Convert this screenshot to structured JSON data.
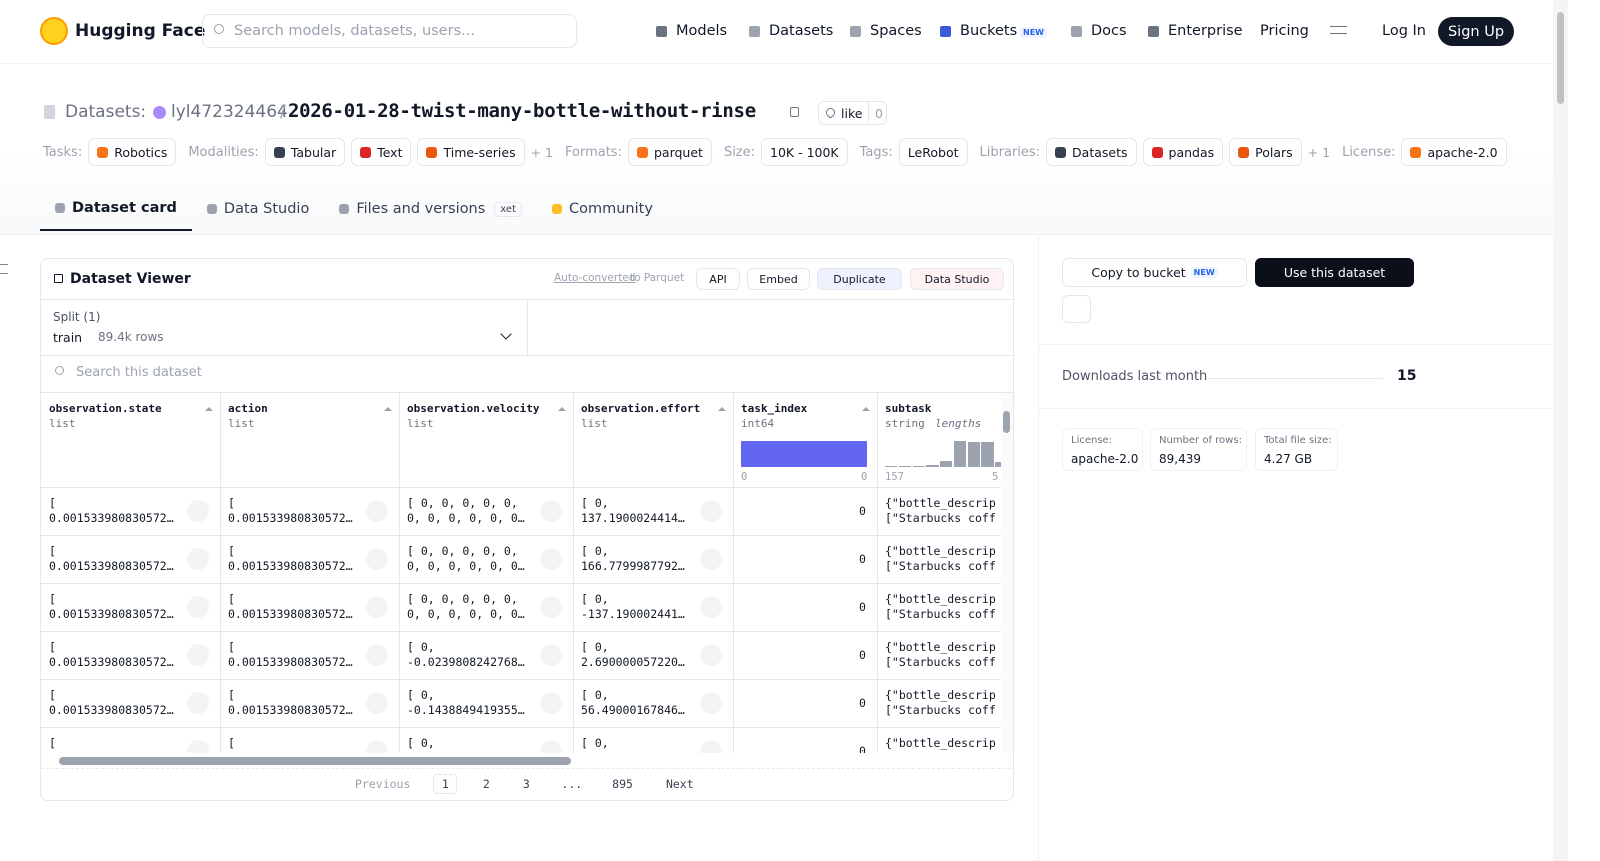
{
  "header": {
    "brand": "Hugging Face",
    "search_placeholder": "Search models, datasets, users...",
    "nav": [
      {
        "label": "Models"
      },
      {
        "label": "Datasets"
      },
      {
        "label": "Spaces"
      },
      {
        "label": "Buckets",
        "badge": "NEW"
      },
      {
        "label": "Docs"
      },
      {
        "label": "Enterprise"
      },
      {
        "label": "Pricing"
      }
    ],
    "login": "Log In",
    "signup": "Sign Up"
  },
  "repo": {
    "kind": "Datasets:",
    "owner": "lyl472324464",
    "separator": "/",
    "name": "2026-01-28-twist-many-bottle-without-rinse",
    "like": "like",
    "likes": 0
  },
  "tags": [
    {
      "label": "Tasks:",
      "items": [
        "Robotics"
      ]
    },
    {
      "label": "Modalities:",
      "items": [
        "Tabular",
        "Text",
        "Time-series"
      ],
      "more": "+ 1"
    },
    {
      "label": "Formats:",
      "items": [
        "parquet"
      ]
    },
    {
      "label": "Size:",
      "items": [
        "10K - 100K"
      ]
    },
    {
      "label": "Tags:",
      "items": [
        "LeRobot"
      ]
    },
    {
      "label": "Libraries:",
      "items": [
        "Datasets",
        "pandas",
        "Polars"
      ],
      "more": "+ 1"
    },
    {
      "label": "License:",
      "items": [
        "apache-2.0"
      ]
    }
  ],
  "tabs": [
    {
      "label": "Dataset card"
    },
    {
      "label": "Data Studio"
    },
    {
      "label": "Files and versions",
      "badge": "xet"
    },
    {
      "label": "Community"
    }
  ],
  "viewer": {
    "title": "Dataset Viewer",
    "converted": "Auto-converted",
    "converted_rest": "to Parquet",
    "actions": [
      "API",
      "Embed",
      "Duplicate",
      "Data Studio"
    ],
    "split_label": "Split (1)",
    "split": "train",
    "split_rows": "89.4k rows",
    "search_placeholder": "Search this dataset",
    "columns": [
      {
        "name": "observation.state",
        "type": "list"
      },
      {
        "name": "action",
        "type": "list"
      },
      {
        "name": "observation.velocity",
        "type": "list"
      },
      {
        "name": "observation.effort",
        "type": "list"
      },
      {
        "name": "task_index",
        "type": "int64",
        "histogram": {
          "counts": [
            1
          ],
          "min": 0,
          "max": 0
        }
      },
      {
        "name": "subtask",
        "type": "string",
        "type_extra": "lengths",
        "histogram": {
          "counts": [
            1,
            1,
            1,
            2,
            5,
            21,
            20,
            20,
            4
          ],
          "min": 157,
          "max": "5"
        }
      }
    ],
    "rows": [
      [
        [
          "[",
          "0.001533980830572…"
        ],
        [
          "[",
          "0.001533980830572…"
        ],
        [
          "[ 0, 0, 0, 0, 0,",
          "0, 0, 0, 0, 0, 0…"
        ],
        [
          "[ 0,",
          "137.1900024414…"
        ],
        0,
        [
          "{\"bottle_descrip",
          "[\"Starbucks coff"
        ]
      ],
      [
        [
          "[",
          "0.001533980830572…"
        ],
        [
          "[",
          "0.001533980830572…"
        ],
        [
          "[ 0, 0, 0, 0, 0,",
          "0, 0, 0, 0, 0, 0…"
        ],
        [
          "[ 0,",
          "166.7799987792…"
        ],
        0,
        [
          "{\"bottle_descrip",
          "[\"Starbucks coff"
        ]
      ],
      [
        [
          "[",
          "0.001533980830572…"
        ],
        [
          "[",
          "0.001533980830572…"
        ],
        [
          "[ 0, 0, 0, 0, 0,",
          "0, 0, 0, 0, 0, 0…"
        ],
        [
          "[ 0,",
          "-137.190002441…"
        ],
        0,
        [
          "{\"bottle_descrip",
          "[\"Starbucks coff"
        ]
      ],
      [
        [
          "[",
          "0.001533980830572…"
        ],
        [
          "[",
          "0.001533980830572…"
        ],
        [
          "[ 0,",
          "-0.0239808242768…"
        ],
        [
          "[ 0,",
          "2.690000057220…"
        ],
        0,
        [
          "{\"bottle_descrip",
          "[\"Starbucks coff"
        ]
      ],
      [
        [
          "[",
          "0.001533980830572…"
        ],
        [
          "[",
          "0.001533980830572…"
        ],
        [
          "[ 0,",
          "-0.1438849419355…"
        ],
        [
          "[ 0,",
          "56.49000167846…"
        ],
        0,
        [
          "{\"bottle_descrip",
          "[\"Starbucks coff"
        ]
      ],
      [
        [
          "["
        ],
        [
          "["
        ],
        [
          "[ 0,"
        ],
        [
          "[ 0,"
        ],
        0,
        [
          "{\"bottle_descrip"
        ]
      ]
    ],
    "pagination": {
      "previous": "Previous",
      "pages": [
        1,
        2,
        3,
        "...",
        895
      ],
      "next": "Next"
    }
  },
  "sidebar": {
    "copy": "Copy to bucket",
    "copy_badge": "NEW",
    "use": "Use this dataset",
    "downloads_label": "Downloads last month",
    "downloads": 15,
    "stats": [
      {
        "label": "License:",
        "value": "apache-2.0"
      },
      {
        "label": "Number of rows:",
        "value": "89,439"
      },
      {
        "label": "Total file size:",
        "value": "4.27 GB"
      }
    ]
  }
}
